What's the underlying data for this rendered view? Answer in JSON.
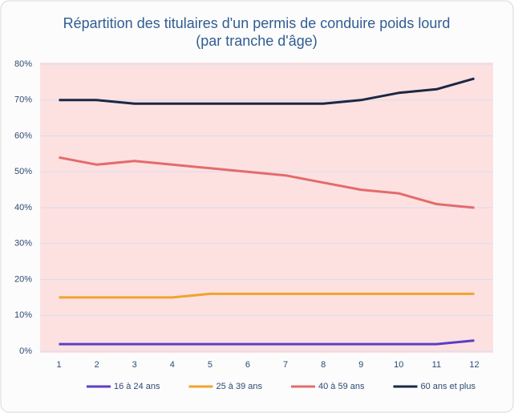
{
  "chart_data": {
    "type": "line",
    "title": [
      "Répartition des titulaires d'un permis de conduire poids lourd",
      "(par tranche d'âge)"
    ],
    "x": [
      1,
      2,
      3,
      4,
      5,
      6,
      7,
      8,
      9,
      10,
      11,
      12
    ],
    "xlim": [
      0.5,
      12.5
    ],
    "xticks": [
      1,
      2,
      3,
      4,
      5,
      6,
      7,
      8,
      9,
      10,
      11,
      12
    ],
    "ylim": [
      0,
      80
    ],
    "yticks": [
      {
        "value": 0,
        "label": "0%"
      },
      {
        "value": 10,
        "label": "10%"
      },
      {
        "value": 20,
        "label": "20%"
      },
      {
        "value": 30,
        "label": "30%"
      },
      {
        "value": 40,
        "label": "40%"
      },
      {
        "value": 50,
        "label": "50%"
      },
      {
        "value": 60,
        "label": "60%"
      },
      {
        "value": 70,
        "label": "70%"
      },
      {
        "value": 80,
        "label": "80%"
      }
    ],
    "grid": true,
    "legend": "bottom",
    "series": [
      {
        "name": "16 à 24 ans",
        "color": "#5b3fc4",
        "values": [
          2,
          2,
          2,
          2,
          2,
          2,
          2,
          2,
          2,
          2,
          2,
          3
        ]
      },
      {
        "name": "25 à 39 ans",
        "color": "#eea52f",
        "values": [
          15,
          15,
          15,
          15,
          16,
          16,
          16,
          16,
          16,
          16,
          16,
          16
        ]
      },
      {
        "name": "40 à 59 ans",
        "color": "#e46b6b",
        "values": [
          54,
          52,
          53,
          52,
          51,
          50,
          49,
          47,
          45,
          44,
          41,
          40
        ]
      },
      {
        "name": "60 ans et plus",
        "color": "#1b2745",
        "values": [
          70,
          70,
          69,
          69,
          69,
          69,
          69,
          69,
          70,
          72,
          73,
          76
        ]
      }
    ]
  }
}
